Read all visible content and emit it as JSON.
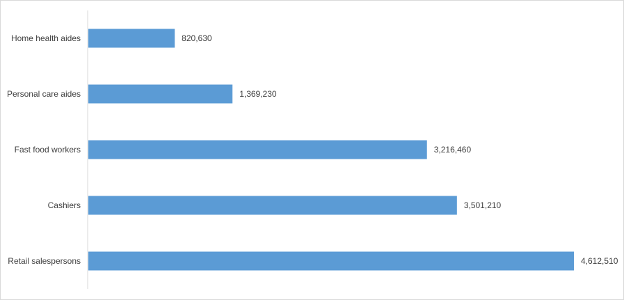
{
  "chart_data": {
    "type": "bar",
    "orientation": "horizontal",
    "categories": [
      "Home health aides",
      "Personal care aides",
      "Fast food workers",
      "Cashiers",
      "Retail salespersons"
    ],
    "values": [
      820630,
      1369230,
      3216460,
      3501210,
      4612510
    ],
    "value_labels": [
      "820,630",
      "1,369,230",
      "3,216,460",
      "3,501,210",
      "4,612,510"
    ],
    "title": "",
    "xlabel": "",
    "ylabel": "",
    "xlim": [
      0,
      4612510
    ],
    "grid": false,
    "legend": "none",
    "bar_color": "#5b9bd5",
    "axis_color": "#d9d9d9"
  }
}
